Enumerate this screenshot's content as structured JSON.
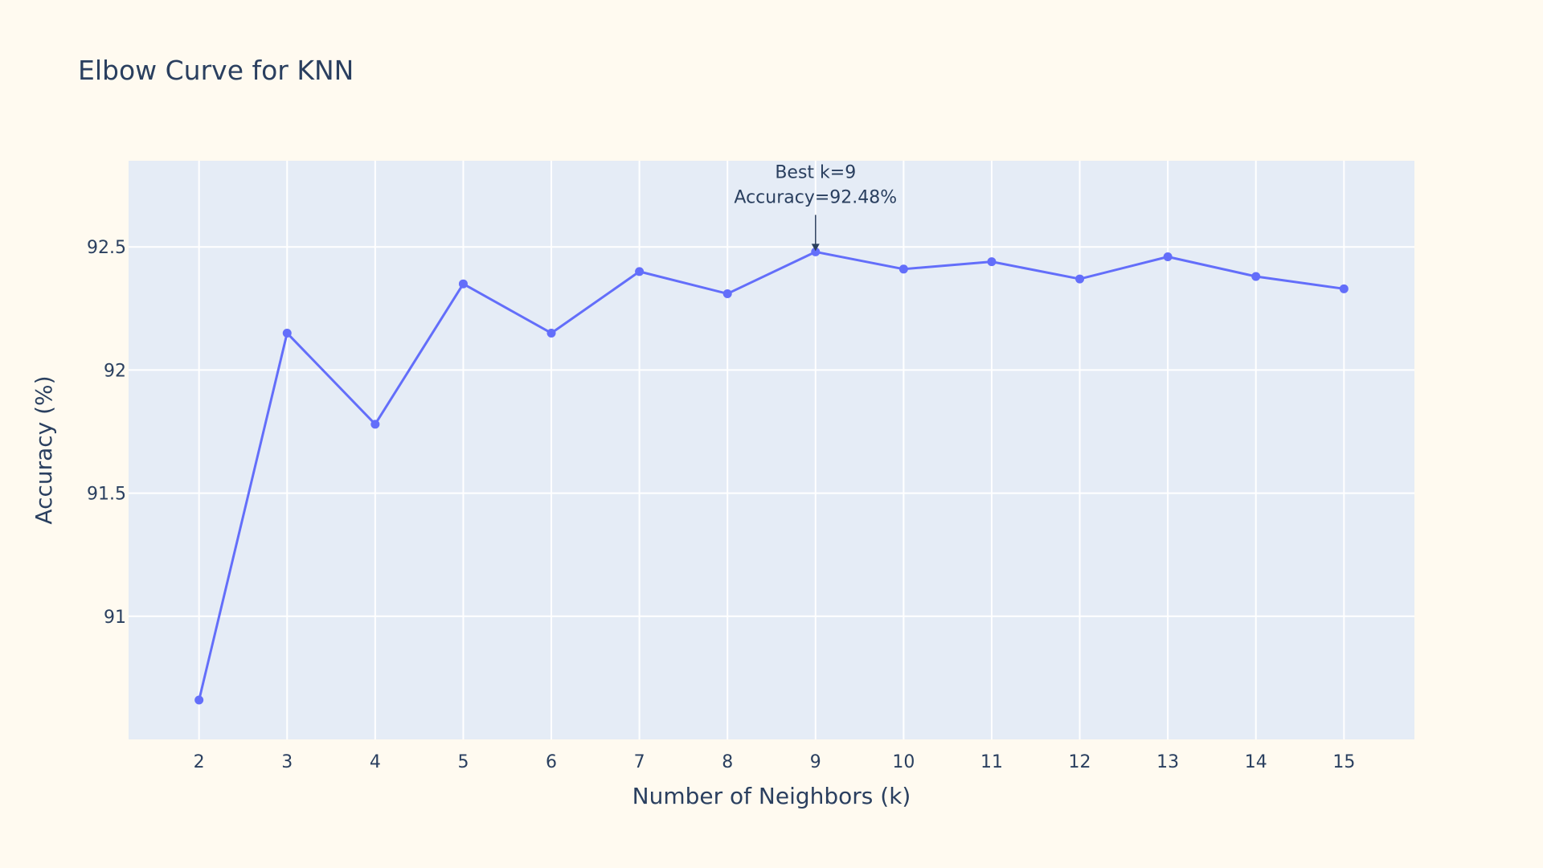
{
  "colors": {
    "background": "#fffaf0",
    "plot_background": "#e5ecf6",
    "grid": "#ffffff",
    "series": "#636efa",
    "text": "#2a3f5f"
  },
  "chart_data": {
    "type": "line",
    "title": "Elbow Curve for KNN",
    "xlabel": "Number of Neighbors (k)",
    "ylabel": "Accuracy (%)",
    "x": [
      2,
      3,
      4,
      5,
      6,
      7,
      8,
      9,
      10,
      11,
      12,
      13,
      14,
      15
    ],
    "series": [
      {
        "values": [
          90.66,
          92.15,
          91.78,
          92.35,
          92.15,
          92.4,
          92.31,
          92.48,
          92.41,
          92.44,
          92.37,
          92.46,
          92.38,
          92.33
        ]
      }
    ],
    "xlim": [
      1.2,
      15.8
    ],
    "ylim": [
      90.5,
      92.85
    ],
    "x_ticks": [
      "2",
      "3",
      "4",
      "5",
      "6",
      "7",
      "8",
      "9",
      "10",
      "11",
      "12",
      "13",
      "14",
      "15"
    ],
    "y_ticks": [
      {
        "value": 91,
        "label": "91"
      },
      {
        "value": 91.5,
        "label": "91.5"
      },
      {
        "value": 92,
        "label": "92"
      },
      {
        "value": 92.5,
        "label": "92.5"
      }
    ],
    "grid": true,
    "mode": "lines+markers",
    "annotation": {
      "x": 9,
      "y": 92.48,
      "line1": "Best k=9",
      "line2": "Accuracy=92.48%",
      "arrow": true
    }
  }
}
